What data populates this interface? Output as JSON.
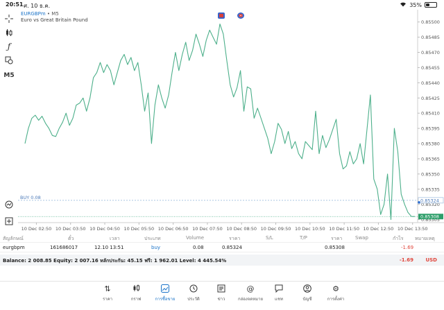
{
  "status": {
    "time": "20:51",
    "date": "ศ. 10 ธ.ค.",
    "battery": "35%",
    "battery_level": 0.35
  },
  "chart": {
    "symbol": "EURGBPm",
    "timeframe": "M5",
    "description": "Euro vs Great Britain Pound",
    "toolbar_timeframe": "M5",
    "buy_line_label": "BUY 0.08",
    "buy_price_tag": "0.85324",
    "current_price_tag": "0.85308",
    "colors": {
      "line": "#4caf8a",
      "buy_line": "#8fb2d8",
      "bid_line": "#4caf8a",
      "bid_tag": "#2e9e6a"
    }
  },
  "chart_data": {
    "type": "line",
    "x_ticks": [
      "10 Dec 02:50",
      "10 Dec 03:50",
      "10 Dec 04:50",
      "10 Dec 05:50",
      "10 Dec 06:50",
      "10 Dec 07:50",
      "10 Dec 08:50",
      "10 Dec 09:50",
      "10 Dec 10:50",
      "10 Dec 11:50",
      "10 Dec 12:50",
      "10 Dec 13:50"
    ],
    "y_ticks": [
      "0.85500",
      "0.85485",
      "0.85470",
      "0.85455",
      "0.85440",
      "0.85425",
      "0.85410",
      "0.85395",
      "0.85380",
      "0.85365",
      "0.85350",
      "0.85335",
      "0.85320",
      "0.85305"
    ],
    "y_range": [
      0.85302,
      0.85508
    ],
    "buy_level": 0.85324,
    "bid_level": 0.85308,
    "series": [
      {
        "x_hours": [
          2.5,
          2.6,
          2.7,
          2.8,
          2.9,
          3.0,
          3.1,
          3.2,
          3.3,
          3.4,
          3.5,
          3.6,
          3.7,
          3.8,
          3.9,
          4.0,
          4.1,
          4.2,
          4.3,
          4.4,
          4.5,
          4.6,
          4.7,
          4.8,
          4.9,
          5.0,
          5.1,
          5.2,
          5.3,
          5.4,
          5.5,
          5.6,
          5.7,
          5.8,
          5.9,
          6.0,
          6.1,
          6.2,
          6.3,
          6.4,
          6.5,
          6.6,
          6.7,
          6.8,
          6.9,
          7.0,
          7.1,
          7.2,
          7.3,
          7.4,
          7.5,
          7.6,
          7.7,
          7.8,
          7.9,
          8.0,
          8.1,
          8.2,
          8.3,
          8.4,
          8.5,
          8.6,
          8.7,
          8.8,
          8.9,
          9.0,
          9.1,
          9.2,
          9.3,
          9.4,
          9.5,
          9.6,
          9.7,
          9.8,
          9.9,
          10.0,
          10.1,
          10.2,
          10.3,
          10.4,
          10.5,
          10.6,
          10.7,
          10.8,
          10.9,
          11.0,
          11.1,
          11.2,
          11.3,
          11.4,
          11.5,
          11.6,
          11.7,
          11.8,
          11.9,
          12.0,
          12.1,
          12.2,
          12.3,
          12.4,
          12.5,
          12.6,
          12.7,
          12.8,
          12.9,
          13.0,
          13.1,
          13.2,
          13.3,
          13.4,
          13.5,
          13.6,
          13.7,
          13.8,
          13.9
        ],
        "values": [
          0.8538,
          0.85395,
          0.85405,
          0.85408,
          0.85403,
          0.85407,
          0.854,
          0.85395,
          0.85388,
          0.85387,
          0.85395,
          0.85401,
          0.8541,
          0.85398,
          0.85405,
          0.85418,
          0.8542,
          0.85425,
          0.85412,
          0.85425,
          0.85445,
          0.8545,
          0.8546,
          0.8545,
          0.85458,
          0.85452,
          0.85438,
          0.8545,
          0.85462,
          0.85468,
          0.85458,
          0.85465,
          0.85452,
          0.8546,
          0.85438,
          0.85412,
          0.8543,
          0.8538,
          0.85418,
          0.85438,
          0.85425,
          0.85415,
          0.85428,
          0.8545,
          0.8547,
          0.85452,
          0.85468,
          0.8548,
          0.85462,
          0.85472,
          0.85488,
          0.85478,
          0.85466,
          0.85482,
          0.85492,
          0.85485,
          0.85478,
          0.85498,
          0.85488,
          0.85462,
          0.85438,
          0.85426,
          0.85435,
          0.85452,
          0.85412,
          0.85436,
          0.85434,
          0.85405,
          0.85415,
          0.85405,
          0.85395,
          0.85385,
          0.8537,
          0.85382,
          0.854,
          0.85394,
          0.8538,
          0.85392,
          0.85375,
          0.85382,
          0.8537,
          0.85365,
          0.85382,
          0.85378,
          0.85374,
          0.85412,
          0.8537,
          0.85388,
          0.85376,
          0.85384,
          0.85394,
          0.85404,
          0.8537,
          0.85355,
          0.85358,
          0.85372,
          0.8536,
          0.85365,
          0.8538,
          0.8536,
          0.85394,
          0.85428,
          0.85345,
          0.85335,
          0.8531,
          0.8532,
          0.8535,
          0.85305,
          0.85395,
          0.85372,
          0.8533,
          0.8532,
          0.85312,
          0.85308,
          0.85308
        ]
      }
    ]
  },
  "positions": {
    "headers": [
      "สัญลักษณ์",
      "ตั๋ว",
      "เวลา",
      "ประเภท",
      "Volume",
      "ราคา",
      "S/L",
      "T/P",
      "ราคา",
      "Swap",
      "กำไร",
      "หมายเหตุ"
    ],
    "row": {
      "symbol": "eurgbpm",
      "ticket": "161686017",
      "time": "12.10 13:51",
      "type": "buy",
      "volume": "0.08",
      "price": "0.85324",
      "sl": "",
      "tp": "",
      "current": "0.85308",
      "swap": "",
      "profit": "-1.69",
      "comment": ""
    }
  },
  "balance": {
    "text": "Balance: 2 008.85 Equity: 2 007.16 หลักประกัน: 45.15 ฟรี: 1 962.01 Level: 4 445.54%",
    "profit": "-1.69",
    "currency": "USD"
  },
  "nav": {
    "items": [
      {
        "label": "ราคา",
        "icon": "quotes-icon"
      },
      {
        "label": "กราฟ",
        "icon": "chart-candles-icon"
      },
      {
        "label": "การซื้อขาย",
        "icon": "trade-icon"
      },
      {
        "label": "ประวัติ",
        "icon": "history-icon"
      },
      {
        "label": "ข่าว",
        "icon": "news-icon"
      },
      {
        "label": "กล่องจดหมาย",
        "icon": "mailbox-icon"
      },
      {
        "label": "แชท",
        "icon": "chat-icon"
      },
      {
        "label": "บัญชี",
        "icon": "account-icon"
      },
      {
        "label": "การตั้งค่า",
        "icon": "settings-icon"
      }
    ]
  }
}
